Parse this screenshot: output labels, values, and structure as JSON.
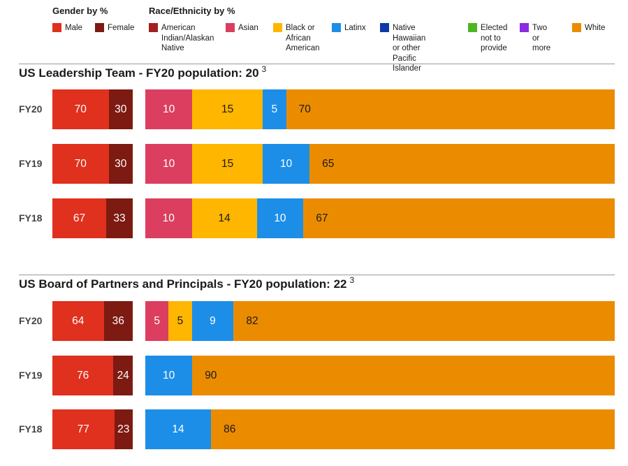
{
  "legend": {
    "gender_title": "Gender by %",
    "race_title": "Race/Ethnicity by %",
    "gender": [
      {
        "key": "male",
        "label": "Male",
        "color": "#e0301e"
      },
      {
        "key": "female",
        "label": "Female",
        "color": "#7d1a12"
      }
    ],
    "race": [
      {
        "key": "aian",
        "label": "American\nIndian/Alaskan\nNative",
        "color": "#a32020"
      },
      {
        "key": "asian",
        "label": "Asian",
        "color": "#db3e5f"
      },
      {
        "key": "black",
        "label": "Black or\nAfrican\nAmerican",
        "color": "#ffb600"
      },
      {
        "key": "latinx",
        "label": "Latinx",
        "color": "#1c8ee8"
      },
      {
        "key": "nhpi",
        "label": "Native Hawaiian\nor other Pacific\nIslander",
        "color": "#0d3aa8"
      },
      {
        "key": "elected",
        "label": "Elected\nnot to\nprovide",
        "color": "#4eb523"
      },
      {
        "key": "two",
        "label": "Two or\nmore",
        "color": "#8a2be2"
      },
      {
        "key": "white",
        "label": "White",
        "color": "#eb8c00"
      }
    ]
  },
  "chart_data": [
    {
      "type": "bar",
      "orientation": "horizontal-stacked",
      "title": "US Leadership Team - FY20 population: 20",
      "footnote": "3",
      "categories": [
        "FY20",
        "FY19",
        "FY18"
      ],
      "gender": {
        "male": [
          70,
          70,
          67
        ],
        "female": [
          30,
          30,
          33
        ]
      },
      "race": {
        "asian": [
          10,
          10,
          10
        ],
        "black": [
          15,
          15,
          14
        ],
        "latinx": [
          5,
          10,
          10
        ],
        "white": [
          70,
          65,
          67
        ]
      }
    },
    {
      "type": "bar",
      "orientation": "horizontal-stacked",
      "title": "US Board of Partners and Principals - FY20 population: 22",
      "footnote": "3",
      "categories": [
        "FY20",
        "FY19",
        "FY18"
      ],
      "gender": {
        "male": [
          64,
          76,
          77
        ],
        "female": [
          36,
          24,
          23
        ]
      },
      "race": {
        "asian": [
          5,
          0,
          0
        ],
        "black": [
          5,
          0,
          0
        ],
        "latinx": [
          9,
          10,
          14
        ],
        "white": [
          82,
          90,
          86
        ]
      }
    }
  ]
}
